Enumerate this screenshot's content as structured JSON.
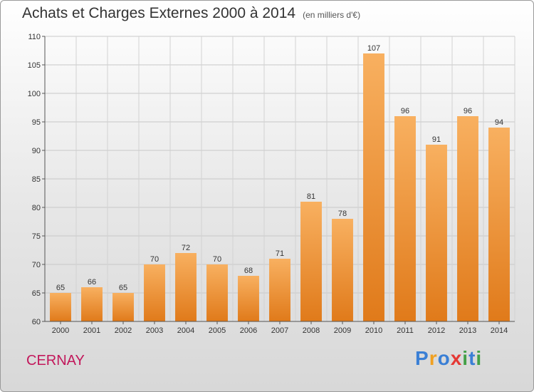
{
  "header": {
    "title": "Achats et Charges Externes 2000 à 2014",
    "unit": "(en milliers d'€)"
  },
  "footer": {
    "commune": "CERNAY",
    "logo": "Proxiti",
    "logo_letters": [
      {
        "ch": "P",
        "color": "#3a7fd5"
      },
      {
        "ch": "r",
        "color": "#f0a020"
      },
      {
        "ch": "o",
        "color": "#3a7fd5"
      },
      {
        "ch": "x",
        "color": "#e53935"
      },
      {
        "ch": "i",
        "color": "#43a047"
      },
      {
        "ch": "t",
        "color": "#3a7fd5"
      },
      {
        "ch": "i",
        "color": "#43a047"
      }
    ]
  },
  "chart_data": {
    "type": "bar",
    "categories": [
      "2000",
      "2001",
      "2002",
      "2003",
      "2004",
      "2005",
      "2006",
      "2007",
      "2008",
      "2009",
      "2010",
      "2011",
      "2012",
      "2013",
      "2014"
    ],
    "values": [
      65,
      66,
      65,
      70,
      72,
      70,
      68,
      71,
      81,
      78,
      107,
      96,
      91,
      96,
      94
    ],
    "ylim": [
      60,
      110
    ],
    "yticks": [
      60,
      65,
      70,
      75,
      80,
      85,
      90,
      95,
      100,
      105,
      110
    ],
    "grid": true,
    "bar_color": "#f08c2a",
    "bar_color_light": "#f8b060"
  }
}
